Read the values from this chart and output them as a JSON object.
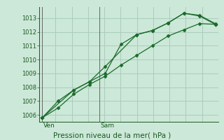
{
  "bg_color": "#cce8d8",
  "grid_color": "#aaccbc",
  "line_color": "#1a6b2a",
  "marker_color": "#1a6b2a",
  "axis_label_color": "#1a5a20",
  "tick_label_color": "#1a5a20",
  "xlabel": "Pression niveau de la mer( hPa )",
  "ylim": [
    1005.5,
    1013.8
  ],
  "yticks": [
    1006,
    1007,
    1008,
    1009,
    1010,
    1011,
    1012,
    1013
  ],
  "series1_x": [
    0,
    1,
    2,
    3,
    4,
    5,
    6,
    7,
    8,
    9,
    10,
    11
  ],
  "series1_y": [
    1005.8,
    1007.0,
    1007.8,
    1008.4,
    1009.0,
    1011.1,
    1011.8,
    1012.1,
    1012.65,
    1013.35,
    1013.15,
    1012.55
  ],
  "series2_x": [
    0,
    2,
    3,
    4,
    6,
    7,
    8,
    9,
    10,
    11
  ],
  "series2_y": [
    1005.8,
    1007.8,
    1008.4,
    1009.5,
    1011.8,
    1012.1,
    1012.65,
    1013.35,
    1013.2,
    1012.6
  ],
  "series3_x": [
    0,
    1,
    2,
    3,
    4,
    5,
    6,
    7,
    8,
    9,
    10,
    11
  ],
  "series3_y": [
    1005.8,
    1006.5,
    1007.5,
    1008.2,
    1008.8,
    1009.6,
    1010.3,
    1011.0,
    1011.7,
    1012.15,
    1012.6,
    1012.55
  ],
  "vline_x": [
    0.0,
    3.636
  ],
  "vline_labels": [
    "Ven",
    "Sam"
  ],
  "xlim": [
    -0.2,
    11.2
  ],
  "figsize": [
    3.2,
    2.0
  ],
  "dpi": 100
}
